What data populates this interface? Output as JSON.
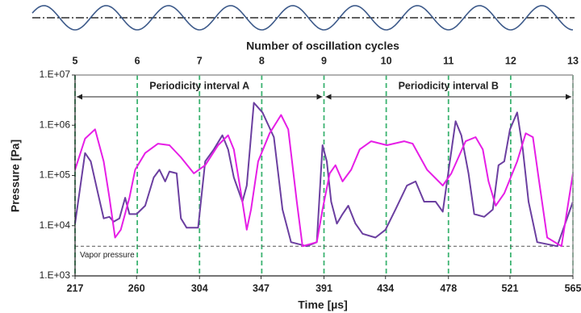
{
  "chart_data": {
    "type": "line",
    "xlabel": "Time [µs]",
    "ylabel": "Pressure [Pa]",
    "x2label": "Number of oscillation cycles",
    "xlim": [
      217,
      565
    ],
    "xticks": [
      217,
      260,
      304,
      347,
      391,
      434,
      478,
      521,
      565
    ],
    "x2lim": [
      5,
      13
    ],
    "x2ticks": [
      5,
      6,
      7,
      8,
      9,
      10,
      11,
      12,
      13
    ],
    "ylim": [
      1000,
      10000000
    ],
    "yscale": "log",
    "yticks": [
      {
        "value": 1000,
        "label": "1.E+03"
      },
      {
        "value": 10000,
        "label": "1.E+04"
      },
      {
        "value": 100000,
        "label": "1.E+05"
      },
      {
        "value": 1000000,
        "label": "1.E+06"
      },
      {
        "value": 10000000,
        "label": "1.E+07"
      }
    ],
    "vapor_pressure": {
      "label": "Vapor pressure",
      "value": 3900
    },
    "intervals": [
      {
        "label": "Periodicity interval A",
        "start": 217,
        "end": 391
      },
      {
        "label": "Periodicity interval B",
        "start": 391,
        "end": 565
      }
    ],
    "series": [
      {
        "color": "#6b3fa0",
        "x": [
          217,
          224,
          228,
          233,
          237,
          241,
          244,
          248,
          252,
          255,
          260,
          266,
          272,
          276,
          280,
          283,
          288,
          291,
          295,
          303,
          308,
          314,
          320,
          324,
          328,
          334,
          337,
          342,
          348,
          356,
          362,
          368,
          379,
          386,
          390,
          393,
          396,
          400,
          404,
          408,
          413,
          418,
          427,
          434,
          441,
          449,
          455,
          461,
          469,
          474,
          479,
          483,
          487,
          492,
          496,
          503,
          509,
          513,
          517,
          521,
          526,
          530,
          534,
          540,
          554,
          565
        ],
        "values": [
          11000,
          280000,
          190000,
          44000,
          14000,
          15000,
          12000,
          14000,
          36000,
          17000,
          17000,
          25000,
          91000,
          130000,
          76000,
          120000,
          110000,
          14000,
          9100,
          9100,
          190000,
          330000,
          630000,
          330000,
          91000,
          30000,
          63000,
          2800000,
          1800000,
          580000,
          21000,
          4700,
          3900,
          4700,
          400000,
          190000,
          30000,
          11000,
          17000,
          25000,
          11000,
          6900,
          5800,
          8300,
          21000,
          63000,
          76000,
          30000,
          30000,
          19000,
          190000,
          1200000,
          630000,
          110000,
          17000,
          15000,
          21000,
          160000,
          190000,
          830000,
          1800000,
          330000,
          30000,
          4700,
          3900,
          30000
        ]
      },
      {
        "color": "#e61ee6",
        "x": [
          217,
          224,
          231,
          237,
          241,
          245,
          249,
          255,
          259,
          266,
          275,
          283,
          291,
          300,
          308,
          317,
          324,
          328,
          334,
          337,
          340,
          345,
          353,
          361,
          366,
          372,
          376,
          386,
          390,
          395,
          399,
          404,
          410,
          416,
          424,
          435,
          447,
          453,
          463,
          474,
          480,
          490,
          497,
          502,
          506,
          511,
          517,
          526,
          532,
          537,
          541,
          547,
          557,
          565
        ],
        "values": [
          130000,
          540000,
          830000,
          190000,
          36000,
          5800,
          8300,
          36000,
          130000,
          280000,
          430000,
          400000,
          230000,
          110000,
          160000,
          400000,
          630000,
          330000,
          30000,
          8300,
          21000,
          190000,
          690000,
          1600000,
          830000,
          30000,
          3900,
          4700,
          21000,
          110000,
          160000,
          76000,
          130000,
          330000,
          480000,
          400000,
          480000,
          430000,
          130000,
          63000,
          110000,
          480000,
          580000,
          330000,
          76000,
          25000,
          44000,
          190000,
          690000,
          580000,
          91000,
          5800,
          3900,
          110000
        ]
      }
    ]
  }
}
